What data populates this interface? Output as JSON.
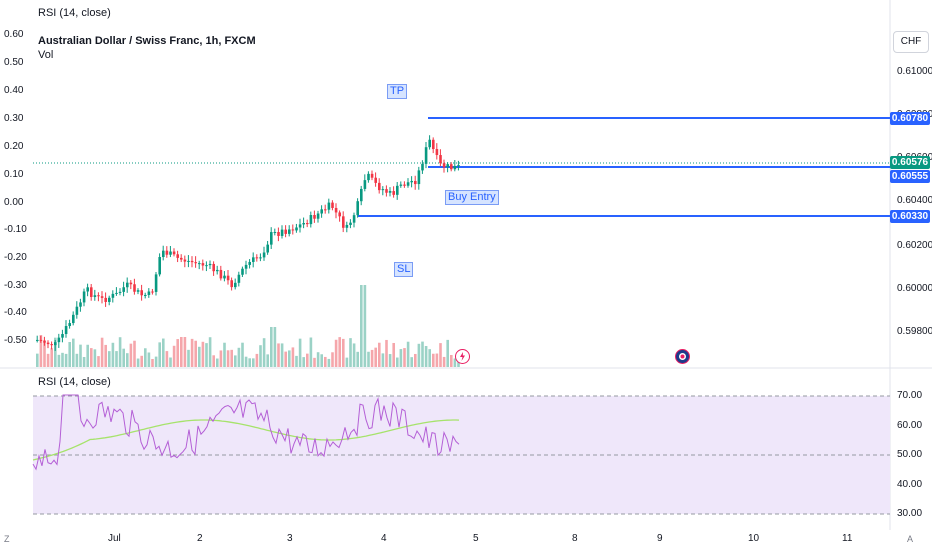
{
  "header": {
    "top_label": "RSI (14, close)"
  },
  "left_axis": [
    "0.60",
    "0.50",
    "0.40",
    "0.30",
    "0.20",
    "0.10",
    "0.00",
    "-0.10",
    "-0.20",
    "-0.30",
    "-0.40",
    "-0.50"
  ],
  "main_pane": {
    "title": "Australian Dollar / Swiss Franc, 1h, FXCM",
    "volume_label": "Vol",
    "currency": "CHF"
  },
  "price_axis": {
    "ticks": [
      "0.61000",
      "0.60800",
      "0.60600",
      "0.60400",
      "0.60200",
      "0.60000",
      "0.59800"
    ]
  },
  "price_labels": [
    {
      "text": "0.60780",
      "color": "#2962ff"
    },
    {
      "text": "0.60576",
      "color": "#089981"
    },
    {
      "text": "0.60555",
      "color": "#2962ff"
    },
    {
      "text": "0.60330",
      "color": "#2962ff"
    }
  ],
  "annotations": {
    "tp": "TP",
    "entry": "Buy Entry",
    "sl": "SL"
  },
  "rsi_pane": {
    "title": "RSI (14, close)",
    "ticks": [
      "70.00",
      "60.00",
      "50.00",
      "40.00",
      "30.00"
    ]
  },
  "time_axis": [
    "Jul",
    "2",
    "3",
    "4",
    "5",
    "8",
    "9",
    "10",
    "11"
  ],
  "corner_left": "Z",
  "corner_right": "A",
  "colors": {
    "up": "#089981",
    "down": "#f23645",
    "line": "#2962ff",
    "rsi": "#b45fd6",
    "rsi_ma": "#a6e36b"
  },
  "icons": {
    "event_flag_1": "lightning-icon",
    "event_flag_2": "flag-event-icon"
  }
}
